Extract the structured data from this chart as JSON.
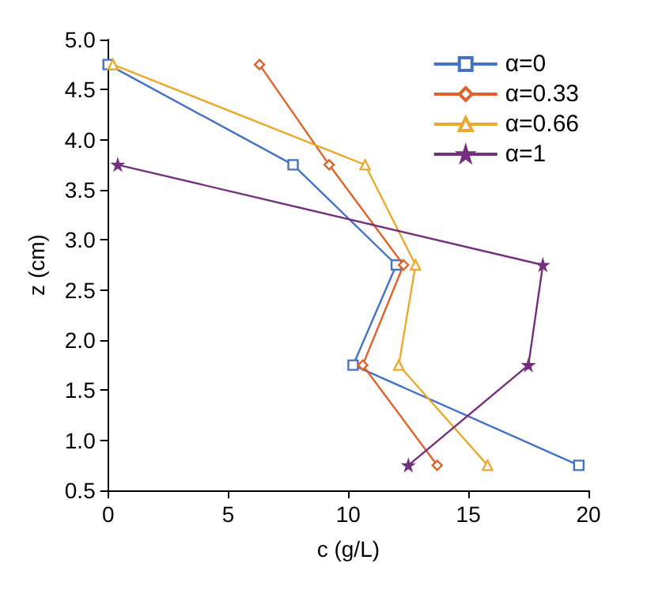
{
  "chart_data": {
    "type": "line",
    "xlabel": "c (g/L)",
    "ylabel": "z (cm)",
    "xlim": [
      0,
      20
    ],
    "xticks": [
      0,
      5,
      10,
      15,
      20
    ],
    "ylim": [
      0.5,
      5
    ],
    "yticks": [
      {
        "value": 0.5,
        "label": "0.5"
      },
      {
        "value": 1,
        "label": "1.0"
      },
      {
        "value": 1.5,
        "label": "1.5"
      },
      {
        "value": 2,
        "label": "2.0"
      },
      {
        "value": 2.5,
        "label": "2.5"
      },
      {
        "value": 3,
        "label": "3.0"
      },
      {
        "value": 3.5,
        "label": "3.5"
      },
      {
        "value": 4,
        "label": "4.0"
      },
      {
        "value": 4.5,
        "label": "4.5"
      },
      {
        "value": 5,
        "label": "5.0"
      }
    ],
    "grid": false,
    "legend": "top right",
    "line_style": "solid",
    "series": [
      {
        "name": "α=0",
        "color": "#4472c4",
        "marker": "square",
        "x": [
          0,
          7.7,
          12.0,
          10.2,
          19.6
        ],
        "values": [
          4.75,
          3.75,
          2.75,
          1.75,
          0.75
        ]
      },
      {
        "name": "α=0.33",
        "color": "#e0622a",
        "marker": "diamond",
        "x": [
          6.3,
          9.2,
          12.3,
          10.6,
          13.7
        ],
        "values": [
          4.75,
          3.75,
          2.75,
          1.75,
          0.75
        ]
      },
      {
        "name": "α=0.66",
        "color": "#eaaa30",
        "marker": "triangle",
        "x": [
          0.2,
          10.7,
          12.8,
          12.1,
          15.8
        ],
        "values": [
          4.75,
          3.75,
          2.75,
          1.75,
          0.75
        ]
      },
      {
        "name": "α=1",
        "color": "#74307e",
        "marker": "star",
        "x": [
          0.4,
          18.1,
          17.5,
          12.5
        ],
        "values": [
          3.75,
          2.75,
          1.75,
          0.75
        ]
      }
    ]
  }
}
